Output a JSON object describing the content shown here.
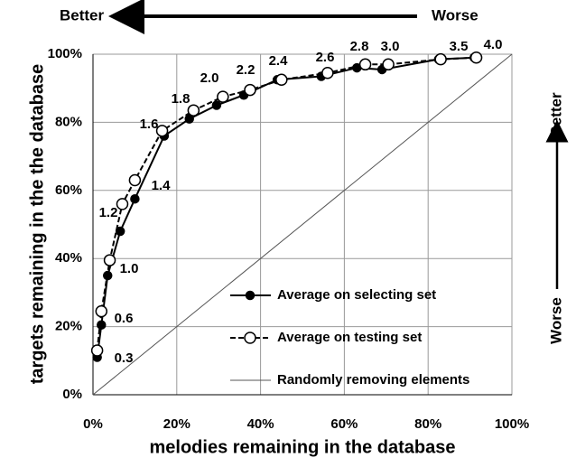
{
  "chart_data": {
    "type": "line",
    "x_label": "melodies remaining in the database",
    "y_label": "targets remaining in the the database",
    "xlim": [
      0,
      100
    ],
    "ylim": [
      0,
      100
    ],
    "xticks": [
      {
        "value": 0,
        "label": "0%"
      },
      {
        "value": 20,
        "label": "20%"
      },
      {
        "value": 40,
        "label": "40%"
      },
      {
        "value": 60,
        "label": "60%"
      },
      {
        "value": 80,
        "label": "80%"
      },
      {
        "value": 100,
        "label": "100%"
      }
    ],
    "yticks": [
      {
        "value": 0,
        "label": "0%"
      },
      {
        "value": 20,
        "label": "20%"
      },
      {
        "value": 40,
        "label": "40%"
      },
      {
        "value": 60,
        "label": "60%"
      },
      {
        "value": 80,
        "label": "80%"
      },
      {
        "value": 100,
        "label": "100%"
      }
    ],
    "grid": true,
    "legend": "lower right",
    "series": [
      {
        "name": "Average on selecting set",
        "color": "#000000",
        "marker": "filled",
        "dash": false,
        "x": [
          1,
          2,
          3.5,
          6.5,
          10,
          17,
          23,
          29.5,
          36,
          44,
          54.5,
          63,
          69,
          82.5,
          91
        ],
        "values": [
          11,
          20.5,
          35,
          48,
          57.5,
          76,
          81,
          85,
          88,
          92.5,
          93.5,
          96,
          95.5,
          98.5,
          99
        ]
      },
      {
        "name": "Average on testing set",
        "color": "#000000",
        "marker": "open",
        "dash": true,
        "x": [
          1,
          2,
          4,
          7,
          10,
          16.5,
          24,
          31,
          37.5,
          45,
          56,
          65,
          70.5,
          83,
          91.5
        ],
        "values": [
          13,
          24.5,
          39.5,
          56,
          63,
          77.5,
          83.5,
          87.5,
          89.5,
          92.5,
          94.5,
          97,
          97,
          98.5,
          99
        ]
      },
      {
        "name": "Randomly removing elements",
        "color": "#555555",
        "marker": "none",
        "dash": false,
        "x": [
          0,
          100
        ],
        "values": [
          0,
          100
        ]
      }
    ],
    "point_labels": [
      "0.3",
      "0.6",
      "1.0",
      "1.2",
      "1.4",
      "1.6",
      "1.8",
      "2.0",
      "2.2",
      "2.4",
      "2.6",
      "2.8",
      "3.0",
      "3.5",
      "4.0"
    ],
    "annotations": {
      "top_better": "Better",
      "top_worse": "Worse",
      "right_better": "Better",
      "right_worse": "Worse"
    }
  }
}
